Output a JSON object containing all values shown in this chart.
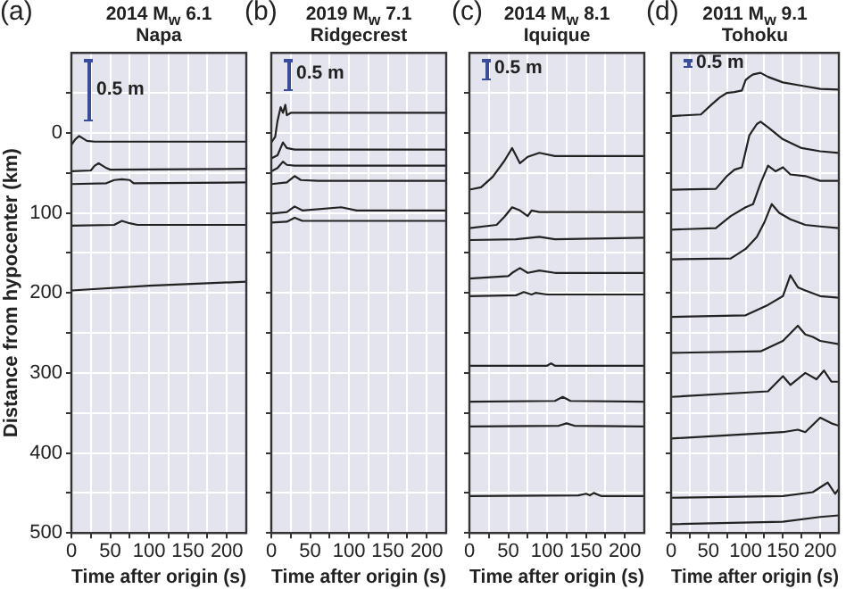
{
  "chart_data": [
    {
      "type": "line",
      "title": "2014 M$_{w}$ 6.1",
      "subtitle": "Napa",
      "xlabel": "Time after origin (s)",
      "ylabel": "Distance from hypocenter (km)",
      "annotations": [
        "(a)",
        "0.5 m"
      ],
      "marker": "none",
      "line_style": "solid",
      "grid": true,
      "xlim": [
        0,
        225
      ],
      "ylim": [
        500,
        -100
      ],
      "xticks": [
        0,
        {
          "value": 25,
          "label": null
        },
        50,
        {
          "value": 75,
          "label": null
        },
        100,
        {
          "value": 125,
          "label": null
        },
        150,
        {
          "value": 175,
          "label": null
        },
        200
      ],
      "yticks": [
        {
          "value": -50,
          "label": null
        },
        0,
        {
          "value": 50,
          "label": null
        },
        100,
        {
          "value": 150,
          "label": null
        },
        200,
        {
          "value": 250,
          "label": null
        },
        300,
        {
          "value": 350,
          "label": null
        },
        400,
        {
          "value": 450,
          "label": null
        },
        500
      ],
      "series": [
        {
          "color": "#222222",
          "x": [
            0,
            5,
            10,
            15,
            20,
            30,
            225
          ],
          "values": [
            15,
            8,
            4,
            7,
            10,
            11,
            11
          ]
        },
        {
          "color": "#222222",
          "x": [
            0,
            25,
            30,
            35,
            40,
            45,
            50,
            225
          ],
          "values": [
            48,
            47,
            41,
            38,
            41,
            44,
            46,
            45
          ]
        },
        {
          "color": "#222222",
          "x": [
            0,
            45,
            55,
            65,
            75,
            80,
            225
          ],
          "values": [
            64,
            63,
            59,
            58,
            59,
            63,
            62
          ]
        },
        {
          "color": "#222222",
          "x": [
            0,
            55,
            65,
            75,
            85,
            225
          ],
          "values": [
            116,
            115,
            110,
            113,
            115,
            115
          ]
        },
        {
          "color": "#222222",
          "x": [
            0,
            100,
            225
          ],
          "values": [
            197,
            191,
            186
          ]
        }
      ]
    },
    {
      "type": "line",
      "title": "2019 M$_{w}$ 7.1",
      "subtitle": "Ridgecrest",
      "xlabel": "Time after origin (s)",
      "annotations": [
        "(b)",
        "0.5 m"
      ],
      "marker": "none",
      "line_style": "solid",
      "grid": true,
      "tick_labels": "x",
      "xlim": [
        0,
        225
      ],
      "ylim": [
        500,
        -100
      ],
      "xticks": [
        0,
        {
          "value": 25,
          "label": null
        },
        50,
        {
          "value": 75,
          "label": null
        },
        100,
        {
          "value": 125,
          "label": null
        },
        150,
        {
          "value": 175,
          "label": null
        },
        200
      ],
      "yticks": [
        {
          "value": -50,
          "label": null
        },
        0,
        {
          "value": 50,
          "label": null
        },
        100,
        {
          "value": 150,
          "label": null
        },
        200,
        {
          "value": 250,
          "label": null
        },
        300,
        {
          "value": 350,
          "label": null
        },
        400,
        {
          "value": 450,
          "label": null
        },
        500
      ],
      "series": [
        {
          "color": "#222222",
          "x": [
            0,
            5,
            8,
            12,
            15,
            18,
            20,
            25,
            225
          ],
          "values": [
            12,
            5,
            -15,
            -32,
            -25,
            -35,
            -22,
            -25,
            -25
          ]
        },
        {
          "color": "#222222",
          "x": [
            0,
            8,
            15,
            20,
            30,
            225
          ],
          "values": [
            32,
            28,
            12,
            19,
            21,
            21
          ]
        },
        {
          "color": "#222222",
          "x": [
            0,
            8,
            15,
            20,
            30,
            225
          ],
          "values": [
            48,
            44,
            36,
            40,
            41,
            41
          ]
        },
        {
          "color": "#222222",
          "x": [
            0,
            20,
            30,
            38,
            60,
            225
          ],
          "values": [
            64,
            62,
            54,
            59,
            60,
            60
          ]
        },
        {
          "color": "#222222",
          "x": [
            0,
            20,
            30,
            40,
            90,
            110,
            225
          ],
          "values": [
            101,
            99,
            92,
            97,
            93,
            97,
            97
          ]
        },
        {
          "color": "#222222",
          "x": [
            0,
            20,
            30,
            40,
            225
          ],
          "values": [
            112,
            111,
            106,
            110,
            110
          ]
        }
      ]
    },
    {
      "type": "line",
      "title": "2014 M$_{w}$ 8.1",
      "subtitle": "Iquique",
      "xlabel": "Time after origin (s)",
      "annotations": [
        "(c)",
        "0.5 m"
      ],
      "marker": "none",
      "line_style": "solid",
      "grid": true,
      "tick_labels": "x",
      "xlim": [
        0,
        225
      ],
      "ylim": [
        500,
        -100
      ],
      "xticks": [
        0,
        {
          "value": 25,
          "label": null
        },
        50,
        {
          "value": 75,
          "label": null
        },
        100,
        {
          "value": 125,
          "label": null
        },
        150,
        {
          "value": 175,
          "label": null
        },
        200
      ],
      "yticks": [
        {
          "value": -50,
          "label": null
        },
        0,
        {
          "value": 50,
          "label": null
        },
        100,
        {
          "value": 150,
          "label": null
        },
        200,
        {
          "value": 250,
          "label": null
        },
        300,
        {
          "value": 350,
          "label": null
        },
        400,
        {
          "value": 450,
          "label": null
        },
        500
      ],
      "series": [
        {
          "color": "#222222",
          "x": [
            0,
            15,
            30,
            45,
            55,
            65,
            75,
            90,
            110,
            225
          ],
          "values": [
            71,
            68,
            55,
            35,
            19,
            38,
            30,
            25,
            29,
            29
          ]
        },
        {
          "color": "#222222",
          "x": [
            0,
            35,
            45,
            55,
            65,
            75,
            80,
            90,
            225
          ],
          "values": [
            119,
            115,
            105,
            93,
            97,
            104,
            97,
            99,
            99
          ]
        },
        {
          "color": "#222222",
          "x": [
            0,
            60,
            90,
            110,
            225
          ],
          "values": [
            134,
            133,
            130,
            133,
            131
          ]
        },
        {
          "color": "#222222",
          "x": [
            0,
            50,
            55,
            65,
            75,
            90,
            110,
            225
          ],
          "values": [
            182,
            179,
            175,
            169,
            175,
            172,
            175,
            175
          ]
        },
        {
          "color": "#222222",
          "x": [
            0,
            60,
            70,
            80,
            85,
            100,
            225
          ],
          "values": [
            204,
            203,
            199,
            202,
            200,
            202,
            202
          ]
        },
        {
          "color": "#222222",
          "x": [
            0,
            100,
            105,
            110,
            225
          ],
          "values": [
            291,
            291,
            288,
            291,
            291
          ]
        },
        {
          "color": "#222222",
          "x": [
            0,
            110,
            120,
            130,
            225
          ],
          "values": [
            336,
            335,
            330,
            335,
            336
          ]
        },
        {
          "color": "#222222",
          "x": [
            0,
            115,
            125,
            135,
            225
          ],
          "values": [
            367,
            366,
            363,
            366,
            367
          ]
        },
        {
          "color": "#222222",
          "x": [
            0,
            140,
            150,
            155,
            160,
            170,
            225
          ],
          "values": [
            454,
            453,
            451,
            453,
            450,
            454,
            454
          ]
        }
      ]
    },
    {
      "type": "line",
      "title": "2011 M$_{w}$ 9.1",
      "subtitle": "Tohoku",
      "xlabel": "Time after origin (s)",
      "annotations": [
        "(d)",
        "0.5 m"
      ],
      "marker": "none",
      "line_style": "solid",
      "grid": true,
      "tick_labels": "x",
      "xlim": [
        0,
        225
      ],
      "ylim": [
        500,
        -100
      ],
      "xticks": [
        0,
        {
          "value": 25,
          "label": null
        },
        50,
        {
          "value": 75,
          "label": null
        },
        100,
        {
          "value": 125,
          "label": null
        },
        150,
        {
          "value": 175,
          "label": null
        },
        200
      ],
      "yticks": [
        {
          "value": -50,
          "label": null
        },
        0,
        {
          "value": 50,
          "label": null
        },
        100,
        {
          "value": 150,
          "label": null
        },
        200,
        {
          "value": 250,
          "label": null
        },
        300,
        {
          "value": 350,
          "label": null
        },
        400,
        {
          "value": 450,
          "label": null
        },
        500
      ],
      "series": [
        {
          "color": "#222222",
          "x": [
            0,
            40,
            55,
            65,
            75,
            85,
            95,
            100,
            105,
            110,
            120,
            130,
            150,
            175,
            200,
            225
          ],
          "values": [
            -21,
            -23,
            -36,
            -44,
            -50,
            -51,
            -53,
            -66,
            -70,
            -73,
            -75,
            -70,
            -63,
            -59,
            -55,
            -54
          ]
        },
        {
          "color": "#222222",
          "x": [
            0,
            60,
            75,
            85,
            95,
            105,
            115,
            120,
            130,
            150,
            175,
            200,
            225
          ],
          "values": [
            71,
            70,
            54,
            46,
            43,
            3,
            -11,
            -14,
            -7,
            8,
            19,
            23,
            25
          ]
        },
        {
          "color": "#222222",
          "x": [
            0,
            60,
            80,
            100,
            110,
            120,
            130,
            140,
            150,
            160,
            180,
            200,
            225
          ],
          "values": [
            121,
            119,
            104,
            93,
            89,
            63,
            41,
            48,
            43,
            52,
            54,
            60,
            60
          ]
        },
        {
          "color": "#222222",
          "x": [
            0,
            80,
            100,
            115,
            125,
            135,
            145,
            160,
            180,
            200,
            225
          ],
          "values": [
            158,
            157,
            145,
            130,
            112,
            89,
            100,
            108,
            115,
            117,
            119
          ]
        },
        {
          "color": "#222222",
          "x": [
            0,
            100,
            130,
            150,
            160,
            170,
            180,
            200,
            225
          ],
          "values": [
            230,
            228,
            215,
            204,
            178,
            193,
            197,
            204,
            206
          ]
        },
        {
          "color": "#222222",
          "x": [
            0,
            120,
            150,
            170,
            180,
            190,
            200,
            225
          ],
          "values": [
            275,
            273,
            260,
            241,
            252,
            255,
            260,
            264
          ]
        },
        {
          "color": "#222222",
          "x": [
            0,
            130,
            150,
            160,
            180,
            195,
            205,
            215,
            225
          ],
          "values": [
            330,
            323,
            304,
            315,
            300,
            308,
            297,
            311,
            311
          ]
        },
        {
          "color": "#222222",
          "x": [
            0,
            150,
            170,
            180,
            200,
            215,
            225
          ],
          "values": [
            382,
            374,
            371,
            374,
            356,
            363,
            366
          ]
        },
        {
          "color": "#222222",
          "x": [
            0,
            150,
            190,
            210,
            220,
            225
          ],
          "values": [
            456,
            454,
            449,
            437,
            451,
            445
          ]
        },
        {
          "color": "#222222",
          "x": [
            0,
            150,
            200,
            225
          ],
          "values": [
            489,
            486,
            480,
            478
          ]
        }
      ]
    }
  ]
}
